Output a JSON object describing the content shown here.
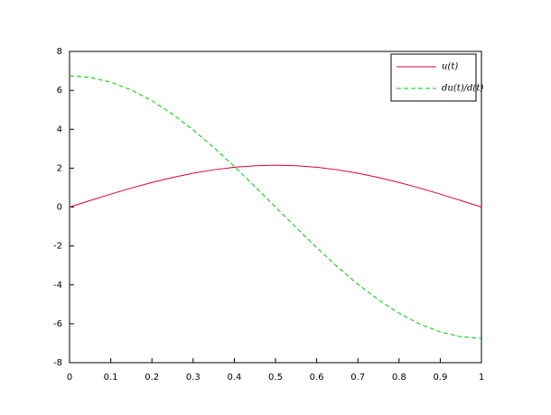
{
  "chart_data": {
    "type": "line",
    "x": [
      0,
      0.05,
      0.1,
      0.15,
      0.2,
      0.25,
      0.3,
      0.35,
      0.4,
      0.45,
      0.5,
      0.55,
      0.6,
      0.65,
      0.7,
      0.75,
      0.8,
      0.85,
      0.9,
      0.95,
      1
    ],
    "series": [
      {
        "name": "u(t)",
        "color": "#e0002a",
        "dash": false,
        "values": [
          0,
          0.336,
          0.664,
          0.976,
          1.264,
          1.52,
          1.739,
          1.916,
          2.045,
          2.124,
          2.15,
          2.124,
          2.045,
          1.916,
          1.739,
          1.52,
          1.264,
          0.976,
          0.664,
          0.336,
          0
        ]
      },
      {
        "name": "du(t)/d(t)",
        "color": "#00c800",
        "dash": true,
        "values": [
          6.75,
          6.667,
          6.42,
          6.014,
          5.461,
          4.773,
          3.968,
          3.065,
          2.086,
          1.056,
          0,
          -1.056,
          -2.086,
          -3.065,
          -3.968,
          -4.773,
          -5.461,
          -6.014,
          -6.42,
          -6.667,
          -6.75
        ]
      }
    ],
    "xlim": [
      0,
      1
    ],
    "xticks": [
      0,
      0.1,
      0.2,
      0.3,
      0.4,
      0.5,
      0.6,
      0.7,
      0.8,
      0.9,
      1
    ],
    "ylim": [
      -8,
      8
    ],
    "yticks": [
      -8,
      -6,
      -4,
      -2,
      0,
      2,
      4,
      6,
      8
    ],
    "legend": "upper-right"
  }
}
